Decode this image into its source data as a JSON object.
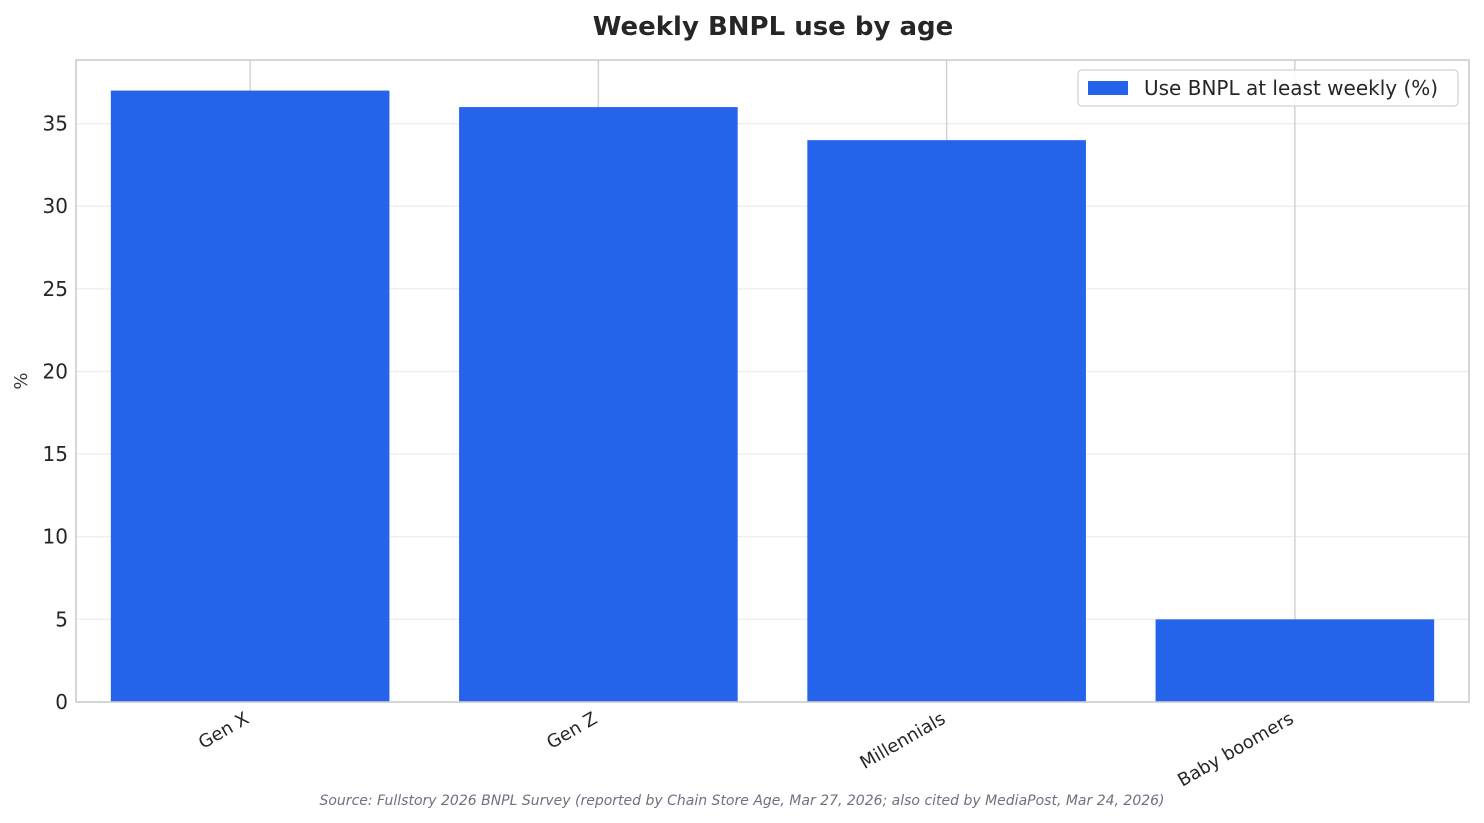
{
  "chart_data": {
    "type": "bar",
    "title": "Weekly BNPL use by age",
    "xlabel": "",
    "ylabel": "%",
    "categories": [
      "Gen X",
      "Gen Z",
      "Millennials",
      "Baby boomers"
    ],
    "series": [
      {
        "name": "Use BNPL at least weekly (%)",
        "values": [
          37,
          36,
          34,
          5
        ],
        "color": "#2563eb"
      }
    ],
    "ylim": [
      0,
      38.85
    ],
    "yticks": [
      0,
      5,
      10,
      15,
      20,
      25,
      30,
      35
    ],
    "grid": true,
    "legend_position": "top-right"
  },
  "source": "Source: Fullstory 2026 BNPL Survey (reported by Chain Store Age, Mar 27, 2026; also cited by MediaPost, Mar 24, 2026)"
}
